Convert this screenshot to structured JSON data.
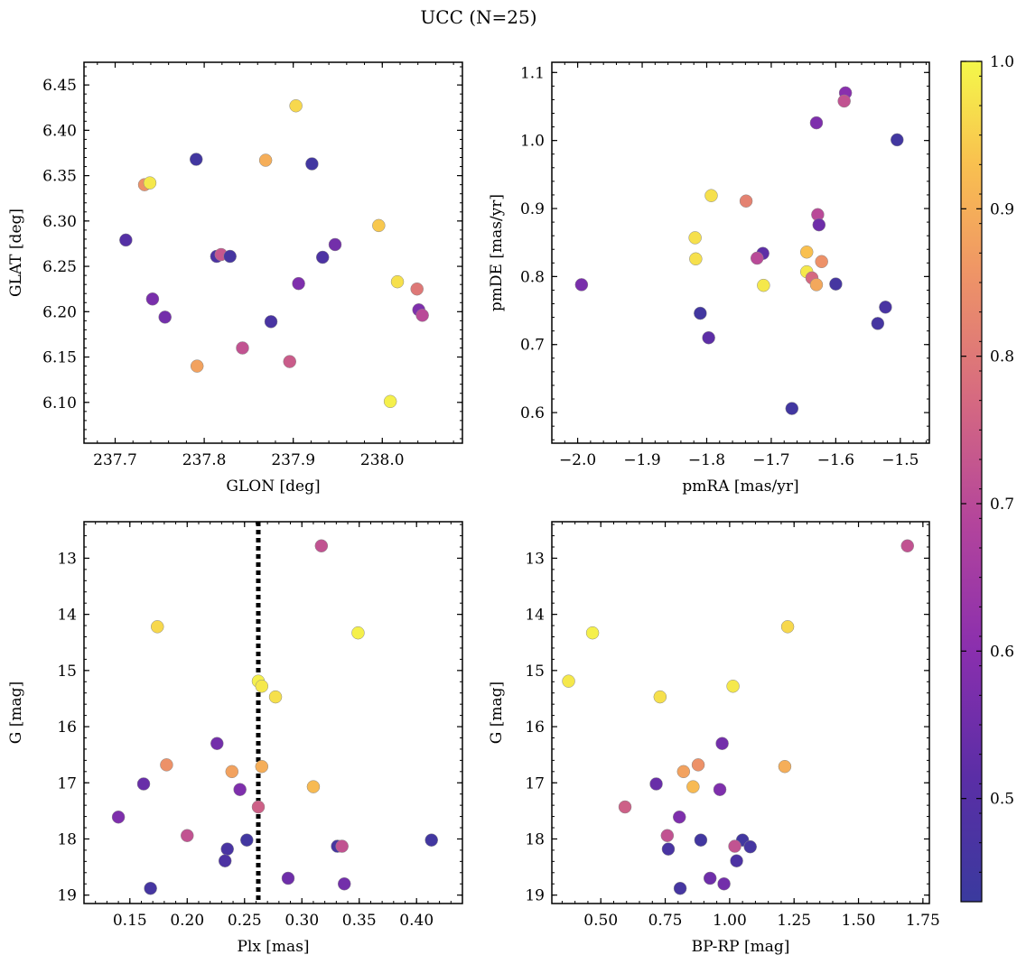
{
  "figure_title": "UCC (N=25)",
  "colorbar": {
    "min": 0.43,
    "max": 1.0,
    "ticks": [
      0.5,
      0.6,
      0.7,
      0.8,
      0.9,
      1.0
    ],
    "tick_labels": [
      "0.5",
      "0.6",
      "0.7",
      "0.8",
      "0.9",
      "1.0"
    ],
    "colormap": "plasma"
  },
  "chart_data": [
    {
      "type": "scatter",
      "xlabel": "GLON [deg]",
      "ylabel": "GLAT [deg]",
      "xlim": [
        237.665,
        238.09
      ],
      "ylim": [
        6.055,
        6.475
      ],
      "y_inverted": false,
      "xticks": [
        237.7,
        237.8,
        237.9,
        238.0
      ],
      "xtick_labels": [
        "237.7",
        "237.8",
        "237.9",
        "238.0"
      ],
      "yticks": [
        6.1,
        6.15,
        6.2,
        6.25,
        6.3,
        6.35,
        6.4,
        6.45
      ],
      "ytick_labels": [
        "6.10",
        "6.15",
        "6.20",
        "6.25",
        "6.30",
        "6.35",
        "6.40",
        "6.45"
      ],
      "points": [
        {
          "x": 237.903,
          "y": 6.427,
          "c": 0.96
        },
        {
          "x": 237.869,
          "y": 6.367,
          "c": 0.9
        },
        {
          "x": 237.791,
          "y": 6.368,
          "c": 0.45
        },
        {
          "x": 237.921,
          "y": 6.363,
          "c": 0.45
        },
        {
          "x": 237.733,
          "y": 6.34,
          "c": 0.85
        },
        {
          "x": 237.739,
          "y": 6.342,
          "c": 0.98
        },
        {
          "x": 237.996,
          "y": 6.295,
          "c": 0.94
        },
        {
          "x": 237.712,
          "y": 6.279,
          "c": 0.5
        },
        {
          "x": 237.947,
          "y": 6.274,
          "c": 0.56
        },
        {
          "x": 237.814,
          "y": 6.261,
          "c": 0.48
        },
        {
          "x": 237.819,
          "y": 6.263,
          "c": 0.73
        },
        {
          "x": 237.829,
          "y": 6.261,
          "c": 0.46
        },
        {
          "x": 237.933,
          "y": 6.26,
          "c": 0.48
        },
        {
          "x": 238.017,
          "y": 6.233,
          "c": 0.97
        },
        {
          "x": 237.906,
          "y": 6.231,
          "c": 0.58
        },
        {
          "x": 238.039,
          "y": 6.225,
          "c": 0.8
        },
        {
          "x": 237.742,
          "y": 6.214,
          "c": 0.57
        },
        {
          "x": 238.041,
          "y": 6.202,
          "c": 0.58
        },
        {
          "x": 238.045,
          "y": 6.196,
          "c": 0.7
        },
        {
          "x": 237.756,
          "y": 6.194,
          "c": 0.56
        },
        {
          "x": 237.875,
          "y": 6.189,
          "c": 0.47
        },
        {
          "x": 237.843,
          "y": 6.16,
          "c": 0.72
        },
        {
          "x": 237.896,
          "y": 6.145,
          "c": 0.74
        },
        {
          "x": 237.792,
          "y": 6.14,
          "c": 0.88
        },
        {
          "x": 238.009,
          "y": 6.101,
          "c": 0.99
        }
      ]
    },
    {
      "type": "scatter",
      "xlabel": "pmRA [mas/yr]",
      "ylabel": "pmDE [mas/yr]",
      "xlim": [
        -2.04,
        -1.455
      ],
      "ylim": [
        0.555,
        1.115
      ],
      "y_inverted": false,
      "xticks": [
        -2.0,
        -1.9,
        -1.8,
        -1.7,
        -1.6,
        -1.5
      ],
      "xtick_labels": [
        "−2.0",
        "−1.9",
        "−1.8",
        "−1.7",
        "−1.6",
        "−1.5"
      ],
      "yticks": [
        0.6,
        0.7,
        0.8,
        0.9,
        1.0,
        1.1
      ],
      "ytick_labels": [
        "0.6",
        "0.7",
        "0.8",
        "0.9",
        "1.0",
        "1.1"
      ],
      "points": [
        {
          "x": -1.585,
          "y": 1.07,
          "c": 0.6
        },
        {
          "x": -1.587,
          "y": 1.058,
          "c": 0.72
        },
        {
          "x": -1.63,
          "y": 1.026,
          "c": 0.58
        },
        {
          "x": -1.505,
          "y": 1.001,
          "c": 0.45
        },
        {
          "x": -1.793,
          "y": 0.919,
          "c": 0.97
        },
        {
          "x": -1.739,
          "y": 0.911,
          "c": 0.82
        },
        {
          "x": -1.628,
          "y": 0.891,
          "c": 0.7
        },
        {
          "x": -1.626,
          "y": 0.876,
          "c": 0.55
        },
        {
          "x": -1.818,
          "y": 0.857,
          "c": 0.97
        },
        {
          "x": -1.645,
          "y": 0.836,
          "c": 0.93
        },
        {
          "x": -1.713,
          "y": 0.834,
          "c": 0.52
        },
        {
          "x": -1.722,
          "y": 0.827,
          "c": 0.7
        },
        {
          "x": -1.817,
          "y": 0.826,
          "c": 0.97
        },
        {
          "x": -1.622,
          "y": 0.822,
          "c": 0.85
        },
        {
          "x": -1.645,
          "y": 0.807,
          "c": 0.98
        },
        {
          "x": -1.637,
          "y": 0.798,
          "c": 0.77
        },
        {
          "x": -1.994,
          "y": 0.788,
          "c": 0.57
        },
        {
          "x": -1.6,
          "y": 0.789,
          "c": 0.46
        },
        {
          "x": -1.712,
          "y": 0.787,
          "c": 0.98
        },
        {
          "x": -1.63,
          "y": 0.788,
          "c": 0.89
        },
        {
          "x": -1.523,
          "y": 0.755,
          "c": 0.47
        },
        {
          "x": -1.81,
          "y": 0.746,
          "c": 0.45
        },
        {
          "x": -1.535,
          "y": 0.731,
          "c": 0.46
        },
        {
          "x": -1.797,
          "y": 0.71,
          "c": 0.52
        },
        {
          "x": -1.668,
          "y": 0.606,
          "c": 0.45
        }
      ]
    },
    {
      "type": "scatter",
      "xlabel": "Plx [mas]",
      "ylabel": "G [mag]",
      "xlim": [
        0.11,
        0.44
      ],
      "ylim": [
        12.35,
        19.15
      ],
      "y_inverted": true,
      "xticks": [
        0.15,
        0.2,
        0.25,
        0.3,
        0.35,
        0.4
      ],
      "xtick_labels": [
        "0.15",
        "0.20",
        "0.25",
        "0.30",
        "0.35",
        "0.40"
      ],
      "yticks": [
        13,
        14,
        15,
        16,
        17,
        18,
        19
      ],
      "ytick_labels": [
        "13",
        "14",
        "15",
        "16",
        "17",
        "18",
        "19"
      ],
      "vline": {
        "x": 0.262
      },
      "points": [
        {
          "x": 0.317,
          "y": 12.78,
          "c": 0.72
        },
        {
          "x": 0.174,
          "y": 14.22,
          "c": 0.96
        },
        {
          "x": 0.349,
          "y": 14.33,
          "c": 0.99
        },
        {
          "x": 0.262,
          "y": 15.19,
          "c": 0.99
        },
        {
          "x": 0.265,
          "y": 15.28,
          "c": 0.98
        },
        {
          "x": 0.277,
          "y": 15.47,
          "c": 0.97
        },
        {
          "x": 0.226,
          "y": 16.3,
          "c": 0.56
        },
        {
          "x": 0.182,
          "y": 16.68,
          "c": 0.85
        },
        {
          "x": 0.265,
          "y": 16.71,
          "c": 0.9
        },
        {
          "x": 0.239,
          "y": 16.8,
          "c": 0.88
        },
        {
          "x": 0.162,
          "y": 17.02,
          "c": 0.54
        },
        {
          "x": 0.31,
          "y": 17.07,
          "c": 0.92
        },
        {
          "x": 0.246,
          "y": 17.12,
          "c": 0.58
        },
        {
          "x": 0.262,
          "y": 17.43,
          "c": 0.75
        },
        {
          "x": 0.14,
          "y": 17.61,
          "c": 0.58
        },
        {
          "x": 0.2,
          "y": 17.94,
          "c": 0.72
        },
        {
          "x": 0.252,
          "y": 18.02,
          "c": 0.45
        },
        {
          "x": 0.413,
          "y": 18.02,
          "c": 0.45
        },
        {
          "x": 0.331,
          "y": 18.13,
          "c": 0.46
        },
        {
          "x": 0.335,
          "y": 18.13,
          "c": 0.72
        },
        {
          "x": 0.235,
          "y": 18.18,
          "c": 0.47
        },
        {
          "x": 0.233,
          "y": 18.39,
          "c": 0.48
        },
        {
          "x": 0.288,
          "y": 18.7,
          "c": 0.55
        },
        {
          "x": 0.337,
          "y": 18.8,
          "c": 0.56
        },
        {
          "x": 0.168,
          "y": 18.88,
          "c": 0.46
        }
      ]
    },
    {
      "type": "scatter",
      "xlabel": "BP-RP [mag]",
      "ylabel": "G [mag]",
      "xlim": [
        0.31,
        1.775
      ],
      "ylim": [
        12.35,
        19.15
      ],
      "y_inverted": true,
      "xticks": [
        0.5,
        0.75,
        1.0,
        1.25,
        1.5,
        1.75
      ],
      "xtick_labels": [
        "0.50",
        "0.75",
        "1.00",
        "1.25",
        "1.50",
        "1.75"
      ],
      "yticks": [
        13,
        14,
        15,
        16,
        17,
        18,
        19
      ],
      "ytick_labels": [
        "13",
        "14",
        "15",
        "16",
        "17",
        "18",
        "19"
      ],
      "points": [
        {
          "x": 1.69,
          "y": 12.78,
          "c": 0.72
        },
        {
          "x": 1.225,
          "y": 14.22,
          "c": 0.96
        },
        {
          "x": 0.468,
          "y": 14.33,
          "c": 0.99
        },
        {
          "x": 0.375,
          "y": 15.19,
          "c": 0.98
        },
        {
          "x": 1.013,
          "y": 15.28,
          "c": 0.98
        },
        {
          "x": 0.73,
          "y": 15.47,
          "c": 0.97
        },
        {
          "x": 0.971,
          "y": 16.3,
          "c": 0.56
        },
        {
          "x": 0.878,
          "y": 16.68,
          "c": 0.85
        },
        {
          "x": 1.214,
          "y": 16.71,
          "c": 0.9
        },
        {
          "x": 0.821,
          "y": 16.8,
          "c": 0.88
        },
        {
          "x": 0.715,
          "y": 17.02,
          "c": 0.54
        },
        {
          "x": 0.858,
          "y": 17.07,
          "c": 0.92
        },
        {
          "x": 0.962,
          "y": 17.12,
          "c": 0.58
        },
        {
          "x": 0.594,
          "y": 17.43,
          "c": 0.75
        },
        {
          "x": 0.805,
          "y": 17.61,
          "c": 0.58
        },
        {
          "x": 0.758,
          "y": 17.94,
          "c": 0.72
        },
        {
          "x": 0.888,
          "y": 18.02,
          "c": 0.45
        },
        {
          "x": 1.05,
          "y": 18.02,
          "c": 0.45
        },
        {
          "x": 1.08,
          "y": 18.14,
          "c": 0.46
        },
        {
          "x": 1.02,
          "y": 18.13,
          "c": 0.72
        },
        {
          "x": 0.762,
          "y": 18.18,
          "c": 0.47
        },
        {
          "x": 1.027,
          "y": 18.39,
          "c": 0.48
        },
        {
          "x": 0.924,
          "y": 18.7,
          "c": 0.55
        },
        {
          "x": 0.978,
          "y": 18.8,
          "c": 0.56
        },
        {
          "x": 0.808,
          "y": 18.88,
          "c": 0.46
        }
      ]
    }
  ]
}
